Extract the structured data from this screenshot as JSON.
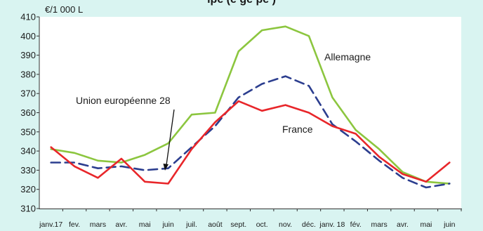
{
  "header": {
    "title_fragment": "ıpe (e                      ge        pe         )"
  },
  "chart_data": {
    "type": "line",
    "title": "",
    "ylabel": "€/1 000 L",
    "xlabel": "",
    "ylim": [
      310,
      410
    ],
    "yticks": [
      "310",
      "320",
      "330",
      "340",
      "350",
      "360",
      "370",
      "380",
      "390",
      "400",
      "410"
    ],
    "categories": [
      "janv.17",
      "fev.",
      "mars",
      "avr.",
      "mai",
      "juin",
      "juil.",
      "août",
      "sept.",
      "oct.",
      "nov.",
      "déc.",
      "janv. 18",
      "fév.",
      "mars",
      "avr.",
      "mai",
      "juin"
    ],
    "grid": false,
    "legend": "none",
    "series": [
      {
        "name": "Allemagne",
        "color": "#8cc63f",
        "dash": "solid",
        "values": [
          341,
          339,
          335,
          334,
          338,
          344,
          359,
          360,
          392,
          403,
          405,
          400,
          368,
          351,
          341,
          329,
          324,
          323
        ]
      },
      {
        "name": "France",
        "color": "#e8262a",
        "dash": "solid",
        "values": [
          342,
          332,
          326,
          336,
          324,
          323,
          341,
          355,
          366,
          361,
          364,
          360,
          353,
          349,
          337,
          328,
          324,
          334
        ]
      },
      {
        "name": "Union européenne 28",
        "color": "#2c3e8f",
        "dash": "dashed",
        "values": [
          334,
          334,
          331,
          332,
          330,
          331,
          342,
          353,
          368,
          375,
          379,
          374,
          354,
          345,
          335,
          326,
          321,
          323
        ]
      }
    ],
    "annotations": [
      {
        "text": "Allemagne",
        "series": "Allemagne"
      },
      {
        "text": "France",
        "series": "France"
      },
      {
        "text": "Union européenne 28",
        "series": "Union européenne 28",
        "arrow": true
      }
    ]
  }
}
